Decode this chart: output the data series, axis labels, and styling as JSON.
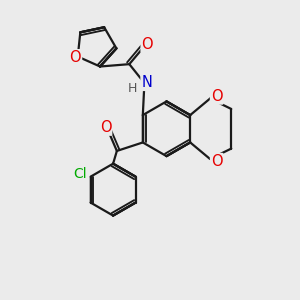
{
  "bg_color": "#ebebeb",
  "bond_color": "#1a1a1a",
  "bond_width": 1.6,
  "dbo": 0.06,
  "atom_colors": {
    "O": "#e60000",
    "N": "#0000cc",
    "Cl": "#00aa00",
    "H": "#555555"
  },
  "fs_main": 10.5,
  "fs_small": 9.0
}
